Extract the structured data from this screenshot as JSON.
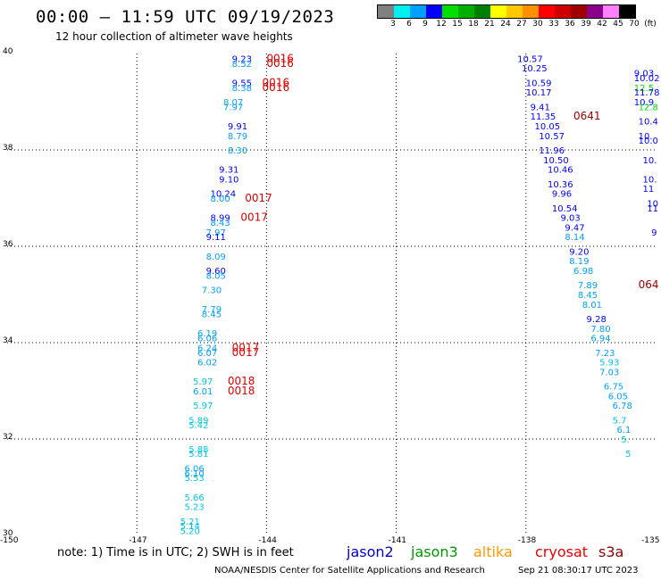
{
  "header": {
    "title": "00:00 – 11:59 UTC 09/19/2023",
    "subtitle": "12 hour collection of altimeter wave heights"
  },
  "legend": {
    "labels": [
      "3",
      "6",
      "9",
      "12",
      "15",
      "18",
      "21",
      "24",
      "27",
      "30",
      "33",
      "36",
      "39",
      "42",
      "45",
      "70",
      "(ft)"
    ],
    "colors": [
      "#808080",
      "#00f0f0",
      "#00a0ff",
      "#0000ff",
      "#00e000",
      "#00b000",
      "#008000",
      "#ffff00",
      "#ffc800",
      "#ff9000",
      "#ff0000",
      "#d00000",
      "#a00000",
      "#8b008b",
      "#ff80ff",
      "#000000"
    ]
  },
  "map": {
    "lon_range": [
      -150,
      -135
    ],
    "lat_range": [
      30,
      40
    ],
    "lon_labels": [
      "-150",
      "-147",
      "-144",
      "-141",
      "-138",
      "-135"
    ],
    "lat_labels": [
      "40",
      "38",
      "36",
      "34",
      "32",
      "30"
    ],
    "lon_values": [
      -150,
      -147,
      -144,
      -141,
      -138,
      -135
    ],
    "lat_values": [
      40,
      38,
      36,
      34,
      32,
      30
    ]
  },
  "wave_heights": [
    {
      "t": "9.23",
      "c": "#0000ff",
      "lon": -144.8,
      "lat": 39.9
    },
    {
      "t": "8.52",
      "c": "#00a0ff",
      "lon": -144.8,
      "lat": 39.8
    },
    {
      "t": "9.55",
      "c": "#0000ff",
      "lon": -144.8,
      "lat": 39.4
    },
    {
      "t": "8.38",
      "c": "#00a0ff",
      "lon": -144.8,
      "lat": 39.3
    },
    {
      "t": "8.07",
      "c": "#00a0ff",
      "lon": -145.0,
      "lat": 39.0
    },
    {
      "t": "7.97",
      "c": "#00a0ff",
      "lon": -145.0,
      "lat": 38.9
    },
    {
      "t": "9.91",
      "c": "#0000ff",
      "lon": -144.9,
      "lat": 38.5
    },
    {
      "t": "8.79",
      "c": "#00a0ff",
      "lon": -144.9,
      "lat": 38.3
    },
    {
      "t": "8.30",
      "c": "#00a0ff",
      "lon": -144.9,
      "lat": 38.0
    },
    {
      "t": "9.31",
      "c": "#0000ff",
      "lon": -145.1,
      "lat": 37.6
    },
    {
      "t": "9.10",
      "c": "#0000ff",
      "lon": -145.1,
      "lat": 37.4
    },
    {
      "t": "10.24",
      "c": "#0000ff",
      "lon": -145.3,
      "lat": 37.1
    },
    {
      "t": "8.00",
      "c": "#00a0ff",
      "lon": -145.3,
      "lat": 37.0
    },
    {
      "t": "8.99",
      "c": "#0000ff",
      "lon": -145.3,
      "lat": 36.6
    },
    {
      "t": "8.43",
      "c": "#00a0ff",
      "lon": -145.3,
      "lat": 36.5
    },
    {
      "t": "7.97",
      "c": "#00a0ff",
      "lon": -145.4,
      "lat": 36.3
    },
    {
      "t": "9.11",
      "c": "#0000ff",
      "lon": -145.4,
      "lat": 36.2
    },
    {
      "t": "8.09",
      "c": "#00a0ff",
      "lon": -145.4,
      "lat": 35.8
    },
    {
      "t": "9.60",
      "c": "#0000ff",
      "lon": -145.4,
      "lat": 35.5
    },
    {
      "t": "8.05",
      "c": "#00a0ff",
      "lon": -145.4,
      "lat": 35.4
    },
    {
      "t": "7.30",
      "c": "#00a0ff",
      "lon": -145.5,
      "lat": 35.1
    },
    {
      "t": "7.79",
      "c": "#00a0ff",
      "lon": -145.5,
      "lat": 34.7
    },
    {
      "t": "8.45",
      "c": "#00a0ff",
      "lon": -145.5,
      "lat": 34.6
    },
    {
      "t": "6.19",
      "c": "#00a0ff",
      "lon": -145.6,
      "lat": 34.2
    },
    {
      "t": "6.06",
      "c": "#00a0ff",
      "lon": -145.6,
      "lat": 34.1
    },
    {
      "t": "6.24",
      "c": "#00a0ff",
      "lon": -145.6,
      "lat": 33.9
    },
    {
      "t": "6.07",
      "c": "#00a0ff",
      "lon": -145.6,
      "lat": 33.8
    },
    {
      "t": "6.02",
      "c": "#00a0ff",
      "lon": -145.6,
      "lat": 33.6
    },
    {
      "t": "5.97",
      "c": "#00c8e6",
      "lon": -145.7,
      "lat": 33.2
    },
    {
      "t": "6.01",
      "c": "#00a0ff",
      "lon": -145.7,
      "lat": 33.0
    },
    {
      "t": "5.97",
      "c": "#00c8e6",
      "lon": -145.7,
      "lat": 32.7
    },
    {
      "t": "5.89",
      "c": "#00c8e6",
      "lon": -145.8,
      "lat": 32.4
    },
    {
      "t": "5.42",
      "c": "#00c8e6",
      "lon": -145.8,
      "lat": 32.3
    },
    {
      "t": "5.88",
      "c": "#00c8e6",
      "lon": -145.8,
      "lat": 31.8
    },
    {
      "t": "5.81",
      "c": "#00c8e6",
      "lon": -145.8,
      "lat": 31.7
    },
    {
      "t": "6.06",
      "c": "#00a0ff",
      "lon": -145.9,
      "lat": 31.4
    },
    {
      "t": "6.10",
      "c": "#00a0ff",
      "lon": -145.9,
      "lat": 31.3
    },
    {
      "t": "5.53",
      "c": "#00c8e6",
      "lon": -145.9,
      "lat": 31.2
    },
    {
      "t": "5.66",
      "c": "#00c8e6",
      "lon": -145.9,
      "lat": 30.8
    },
    {
      "t": "5.23",
      "c": "#00c8e6",
      "lon": -145.9,
      "lat": 30.6
    },
    {
      "t": "5.21",
      "c": "#00c8e6",
      "lon": -146.0,
      "lat": 30.3
    },
    {
      "t": "5.14",
      "c": "#00c8e6",
      "lon": -146.0,
      "lat": 30.2
    },
    {
      "t": "5.20",
      "c": "#00c8e6",
      "lon": -146.0,
      "lat": 30.1
    },
    {
      "t": "10.57",
      "c": "#0000ff",
      "lon": -138.2,
      "lat": 39.9
    },
    {
      "t": "10.25",
      "c": "#0000ff",
      "lon": -138.1,
      "lat": 39.7
    },
    {
      "t": "10.59",
      "c": "#0000ff",
      "lon": -138.0,
      "lat": 39.4
    },
    {
      "t": "10.17",
      "c": "#0000ff",
      "lon": -138.0,
      "lat": 39.2
    },
    {
      "t": "9.41",
      "c": "#0000ff",
      "lon": -137.9,
      "lat": 38.9
    },
    {
      "t": "11.35",
      "c": "#0000ff",
      "lon": -137.9,
      "lat": 38.7
    },
    {
      "t": "10.05",
      "c": "#0000ff",
      "lon": -137.8,
      "lat": 38.5
    },
    {
      "t": "10.57",
      "c": "#0000ff",
      "lon": -137.7,
      "lat": 38.3
    },
    {
      "t": "11.96",
      "c": "#0000ff",
      "lon": -137.7,
      "lat": 38.0
    },
    {
      "t": "10.50",
      "c": "#0000ff",
      "lon": -137.6,
      "lat": 37.8
    },
    {
      "t": "10.46",
      "c": "#0000ff",
      "lon": -137.5,
      "lat": 37.6
    },
    {
      "t": "10.36",
      "c": "#0000ff",
      "lon": -137.5,
      "lat": 37.3
    },
    {
      "t": "9.96",
      "c": "#0000ff",
      "lon": -137.4,
      "lat": 37.1
    },
    {
      "t": "10.54",
      "c": "#0000ff",
      "lon": -137.4,
      "lat": 36.8
    },
    {
      "t": "9.03",
      "c": "#0000ff",
      "lon": -137.2,
      "lat": 36.6
    },
    {
      "t": "9.47",
      "c": "#0000ff",
      "lon": -137.1,
      "lat": 36.4
    },
    {
      "t": "8.14",
      "c": "#00a0ff",
      "lon": -137.1,
      "lat": 36.2
    },
    {
      "t": "9.20",
      "c": "#0000ff",
      "lon": -137.0,
      "lat": 35.9
    },
    {
      "t": "8.19",
      "c": "#00a0ff",
      "lon": -137.0,
      "lat": 35.7
    },
    {
      "t": "6.98",
      "c": "#00a0ff",
      "lon": -136.9,
      "lat": 35.5
    },
    {
      "t": "7.89",
      "c": "#00a0ff",
      "lon": -136.8,
      "lat": 35.2
    },
    {
      "t": "8.45",
      "c": "#00a0ff",
      "lon": -136.8,
      "lat": 35.0
    },
    {
      "t": "8.01",
      "c": "#00a0ff",
      "lon": -136.7,
      "lat": 34.8
    },
    {
      "t": "9.28",
      "c": "#0000ff",
      "lon": -136.6,
      "lat": 34.5
    },
    {
      "t": "7.80",
      "c": "#00a0ff",
      "lon": -136.5,
      "lat": 34.3
    },
    {
      "t": "6.94",
      "c": "#00a0ff",
      "lon": -136.5,
      "lat": 34.1
    },
    {
      "t": "7.23",
      "c": "#00a0ff",
      "lon": -136.4,
      "lat": 33.8
    },
    {
      "t": "5.93",
      "c": "#00c8e6",
      "lon": -136.3,
      "lat": 33.6
    },
    {
      "t": "7.03",
      "c": "#00a0ff",
      "lon": -136.3,
      "lat": 33.4
    },
    {
      "t": "6.75",
      "c": "#00a0ff",
      "lon": -136.2,
      "lat": 33.1
    },
    {
      "t": "6.05",
      "c": "#00a0ff",
      "lon": -136.1,
      "lat": 32.9
    },
    {
      "t": "6.78",
      "c": "#00a0ff",
      "lon": -136.0,
      "lat": 32.7
    },
    {
      "t": "5.7",
      "c": "#00c8e6",
      "lon": -136.0,
      "lat": 32.4
    },
    {
      "t": "6.1",
      "c": "#00a0ff",
      "lon": -135.9,
      "lat": 32.2
    },
    {
      "t": "5.",
      "c": "#00c8e6",
      "lon": -135.8,
      "lat": 32.0
    },
    {
      "t": "5",
      "c": "#00c8e6",
      "lon": -135.7,
      "lat": 31.7
    },
    {
      "t": "9.03",
      "c": "#0000ff",
      "lon": -135.5,
      "lat": 39.6
    },
    {
      "t": "10.02",
      "c": "#0000ff",
      "lon": -135.5,
      "lat": 39.5
    },
    {
      "t": "12.5",
      "c": "#00e000",
      "lon": -135.5,
      "lat": 39.3
    },
    {
      "t": "11.78",
      "c": "#0000ff",
      "lon": -135.5,
      "lat": 39.2
    },
    {
      "t": "10.9",
      "c": "#0000ff",
      "lon": -135.5,
      "lat": 39.0
    },
    {
      "t": "12.8",
      "c": "#00e000",
      "lon": -135.4,
      "lat": 38.9
    },
    {
      "t": "10.4",
      "c": "#0000ff",
      "lon": -135.4,
      "lat": 38.6
    },
    {
      "t": "10.",
      "c": "#0000ff",
      "lon": -135.4,
      "lat": 38.3
    },
    {
      "t": "10.0",
      "c": "#0000ff",
      "lon": -135.4,
      "lat": 38.2
    },
    {
      "t": "10.",
      "c": "#0000ff",
      "lon": -135.3,
      "lat": 37.8
    },
    {
      "t": "10.",
      "c": "#0000ff",
      "lon": -135.3,
      "lat": 37.4
    },
    {
      "t": "11",
      "c": "#0000ff",
      "lon": -135.3,
      "lat": 37.2
    },
    {
      "t": "10",
      "c": "#0000ff",
      "lon": -135.2,
      "lat": 36.9
    },
    {
      "t": "11",
      "c": "#0000ff",
      "lon": -135.2,
      "lat": 36.8
    },
    {
      "t": "9",
      "c": "#0000ff",
      "lon": -135.1,
      "lat": 36.3
    }
  ],
  "time_labels": [
    {
      "t": "0016",
      "c": "#e00000",
      "lon": -144.0,
      "lat": 39.9
    },
    {
      "t": "0016",
      "c": "#e00000",
      "lon": -144.0,
      "lat": 39.8
    },
    {
      "t": "0016",
      "c": "#e00000",
      "lon": -144.1,
      "lat": 39.4
    },
    {
      "t": "0016",
      "c": "#e00000",
      "lon": -144.1,
      "lat": 39.3
    },
    {
      "t": "0017",
      "c": "#e00000",
      "lon": -144.5,
      "lat": 37.0
    },
    {
      "t": "0017",
      "c": "#e00000",
      "lon": -144.6,
      "lat": 36.6
    },
    {
      "t": "0017",
      "c": "#e00000",
      "lon": -144.8,
      "lat": 33.9
    },
    {
      "t": "0017",
      "c": "#e00000",
      "lon": -144.8,
      "lat": 33.8
    },
    {
      "t": "0018",
      "c": "#e00000",
      "lon": -144.9,
      "lat": 33.2
    },
    {
      "t": "0018",
      "c": "#e00000",
      "lon": -144.9,
      "lat": 33.0
    },
    {
      "t": "0641",
      "c": "#a00000",
      "lon": -136.9,
      "lat": 38.7
    },
    {
      "t": "064",
      "c": "#a00000",
      "lon": -135.4,
      "lat": 35.2
    }
  ],
  "footer": {
    "note": "note:  1) Time is in UTC;  2) SWH is in feet",
    "satellites": [
      {
        "name": "jason2",
        "color": "#0000cc"
      },
      {
        "name": "jason3",
        "color": "#009900"
      },
      {
        "name": "altika",
        "color": "#ff9900"
      },
      {
        "name": "cryosat",
        "color": "#ee0000"
      },
      {
        "name": "s3a",
        "color": "#8b0000"
      }
    ],
    "credit": "NOAA/NESDIS Center for Satellite Applications and Research",
    "timestamp": "Sep 21 08:30:17 UTC 2023"
  }
}
